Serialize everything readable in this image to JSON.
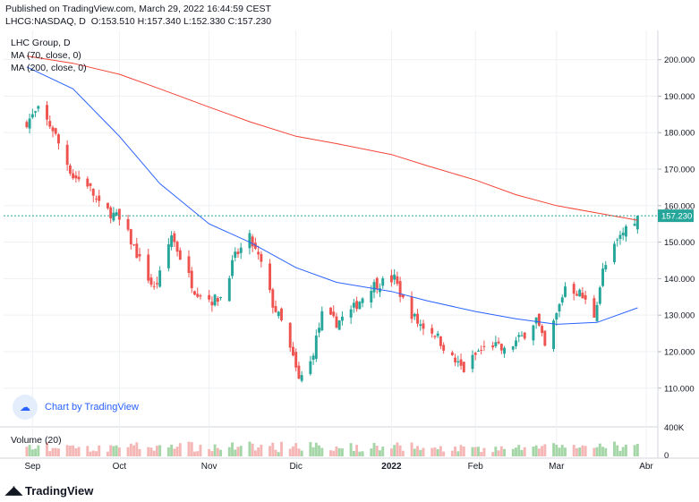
{
  "header": {
    "published": "Published on TradingView.com, March 29, 2022 16:44:59 CEST",
    "symbol": "LHCG:NASDAQ, D",
    "ohlc": "O:153.510 H:157.340 L:152.330 C:157.230"
  },
  "legend": {
    "title": "LHC Group, D",
    "ma70": "MA (70, close, 0)",
    "ma200": "MA (200, close, 0)",
    "volume": "Volume (20)"
  },
  "badge": {
    "text": "Chart by TradingView"
  },
  "brand": {
    "name": "TradingView"
  },
  "colors": {
    "up": "#26a69a",
    "down": "#ef5350",
    "ma70": "#2962ff",
    "ma200": "#f44336",
    "vol_up": "#a5d6a7",
    "vol_down": "#f5b7b6",
    "last_price": "#26a69a",
    "grid": "#eef0f3",
    "axis_text": "#131722"
  },
  "chart_data": {
    "type": "candlestick",
    "symbol": "LHCG",
    "last_price_label": "157.230",
    "y_ticks": [
      "200.000",
      "190.000",
      "180.000",
      "170.000",
      "160.000",
      "150.000",
      "140.000",
      "130.000",
      "120.000",
      "110.000"
    ],
    "y_tick_values": [
      200,
      190,
      180,
      170,
      160,
      150,
      140,
      130,
      120,
      110
    ],
    "ylim": [
      107,
      208
    ],
    "x_ticks": [
      {
        "label": "Sep",
        "date": "2021-09-01"
      },
      {
        "label": "Oct",
        "date": "2021-10-01"
      },
      {
        "label": "Nov",
        "date": "2021-11-01"
      },
      {
        "label": "Dic",
        "date": "2021-12-01"
      },
      {
        "label": "2022",
        "date": "2022-01-03"
      },
      {
        "label": "Feb",
        "date": "2022-02-01"
      },
      {
        "label": "Mar",
        "date": "2022-03-01"
      },
      {
        "label": "Abr",
        "date": "2022-04-01"
      }
    ],
    "volume_ticks": [
      "400K",
      "0"
    ],
    "volume_max": 400000,
    "close_path": [
      [
        "2021-08-30",
        183
      ],
      [
        "2021-09-03",
        186
      ],
      [
        "2021-09-08",
        181
      ],
      [
        "2021-09-10",
        177
      ],
      [
        "2021-09-15",
        168
      ],
      [
        "2021-09-20",
        166
      ],
      [
        "2021-09-24",
        160
      ],
      [
        "2021-09-30",
        157
      ],
      [
        "2021-10-04",
        152
      ],
      [
        "2021-10-08",
        145
      ],
      [
        "2021-10-13",
        137
      ],
      [
        "2021-10-15",
        141
      ],
      [
        "2021-10-19",
        152
      ],
      [
        "2021-10-22",
        146
      ],
      [
        "2021-10-27",
        137
      ],
      [
        "2021-11-02",
        134
      ],
      [
        "2021-11-05",
        135
      ],
      [
        "2021-11-10",
        146
      ],
      [
        "2021-11-15",
        151
      ],
      [
        "2021-11-19",
        144
      ],
      [
        "2021-11-23",
        133
      ],
      [
        "2021-11-26",
        128
      ],
      [
        "2021-11-30",
        118
      ],
      [
        "2021-12-02",
        112
      ],
      [
        "2021-12-06",
        117
      ],
      [
        "2021-12-10",
        130
      ],
      [
        "2021-12-15",
        128
      ],
      [
        "2021-12-20",
        131
      ],
      [
        "2021-12-27",
        138
      ],
      [
        "2022-01-04",
        140
      ],
      [
        "2022-01-07",
        134
      ],
      [
        "2022-01-12",
        128
      ],
      [
        "2022-01-18",
        125
      ],
      [
        "2022-01-24",
        118
      ],
      [
        "2022-01-28",
        115
      ],
      [
        "2022-02-02",
        120
      ],
      [
        "2022-02-07",
        122
      ],
      [
        "2022-02-11",
        120
      ],
      [
        "2022-02-17",
        124
      ],
      [
        "2022-02-22",
        129
      ],
      [
        "2022-02-25",
        121
      ],
      [
        "2022-03-01",
        130
      ],
      [
        "2022-03-04",
        138
      ],
      [
        "2022-03-09",
        136
      ],
      [
        "2022-03-14",
        130
      ],
      [
        "2022-03-17",
        142
      ],
      [
        "2022-03-22",
        150
      ],
      [
        "2022-03-25",
        154
      ],
      [
        "2022-03-29",
        157.23
      ]
    ],
    "series": [
      {
        "name": "MA (70, close, 0)",
        "points": [
          [
            "2021-08-30",
            198
          ],
          [
            "2021-09-15",
            192
          ],
          [
            "2021-10-01",
            179
          ],
          [
            "2021-10-15",
            166
          ],
          [
            "2021-11-01",
            155
          ],
          [
            "2021-11-15",
            150
          ],
          [
            "2021-12-01",
            143
          ],
          [
            "2021-12-15",
            139
          ],
          [
            "2022-01-03",
            136.5
          ],
          [
            "2022-01-15",
            134
          ],
          [
            "2022-02-01",
            131
          ],
          [
            "2022-02-15",
            129
          ],
          [
            "2022-03-01",
            127.5
          ],
          [
            "2022-03-15",
            128
          ],
          [
            "2022-03-29",
            132
          ]
        ]
      },
      {
        "name": "MA (200, close, 0)",
        "points": [
          [
            "2021-08-30",
            201
          ],
          [
            "2021-09-15",
            199
          ],
          [
            "2021-10-01",
            196
          ],
          [
            "2021-10-15",
            192
          ],
          [
            "2021-11-01",
            187
          ],
          [
            "2021-11-15",
            183
          ],
          [
            "2021-12-01",
            179
          ],
          [
            "2021-12-15",
            177
          ],
          [
            "2022-01-03",
            174
          ],
          [
            "2022-01-15",
            171
          ],
          [
            "2022-02-01",
            167
          ],
          [
            "2022-02-15",
            163
          ],
          [
            "2022-03-01",
            160
          ],
          [
            "2022-03-15",
            158
          ],
          [
            "2022-03-29",
            156
          ]
        ]
      }
    ]
  }
}
